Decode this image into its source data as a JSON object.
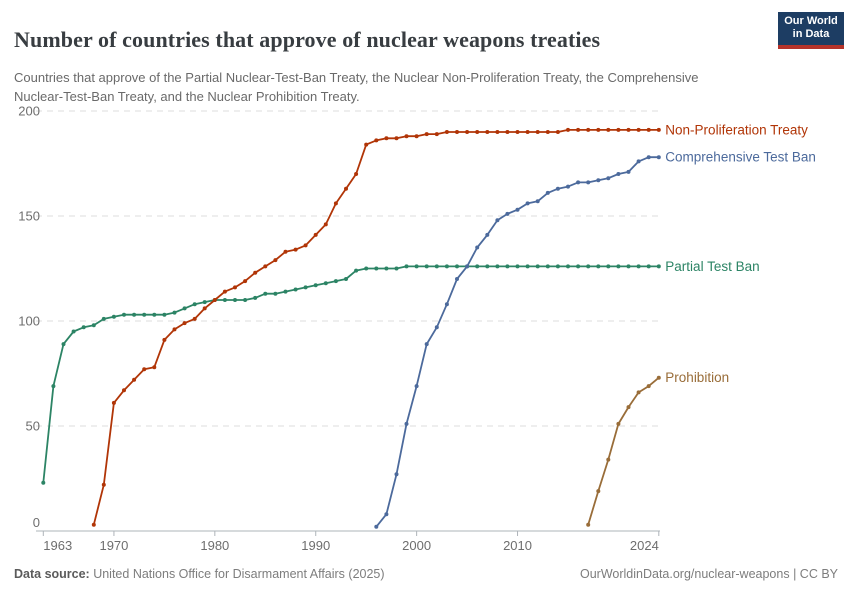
{
  "header": {
    "title": "Number of countries that approve of nuclear weapons treaties",
    "subtitle": "Countries that approve of the Partial Nuclear-Test-Ban Treaty, the Nuclear Non-Proliferation Treaty, the Comprehensive Nuclear-Test-Ban Treaty, and the Nuclear Prohibition Treaty.",
    "logo": {
      "line1": "Our World",
      "line2": "in Data",
      "bg_color": "#1d3d63",
      "accent_color": "#b5332a"
    }
  },
  "chart_data": {
    "type": "line",
    "title": "Number of countries that approve of nuclear weapons treaties",
    "xlabel": "",
    "ylabel": "",
    "x_domain": [
      1963,
      2024
    ],
    "y_domain": [
      0,
      200
    ],
    "x_ticks": [
      1963,
      1970,
      1980,
      1990,
      2000,
      2010,
      2024
    ],
    "y_ticks": [
      0,
      50,
      100,
      150,
      200
    ],
    "grid": "horizontal-dashed",
    "legend_position": "labels-at-line-ends",
    "axis_color": "#aeb4b9",
    "gridline_color": "#dcdcdc",
    "tick_label_color": "#6e6e6e",
    "series": [
      {
        "name": "Partial Test Ban",
        "color": "#2C8465",
        "start_year": 1963,
        "values": [
          23,
          69,
          89,
          95,
          97,
          98,
          101,
          102,
          103,
          103,
          103,
          103,
          103,
          104,
          106,
          108,
          109,
          110,
          110,
          110,
          110,
          111,
          113,
          113,
          114,
          115,
          116,
          117,
          118,
          119,
          120,
          124,
          125,
          125,
          125,
          125,
          126,
          126,
          126,
          126,
          126,
          126,
          126,
          126,
          126,
          126,
          126,
          126,
          126,
          126,
          126,
          126,
          126,
          126,
          126,
          126,
          126,
          126,
          126,
          126,
          126,
          126
        ]
      },
      {
        "name": "Non-Proliferation Treaty",
        "color": "#B13507",
        "start_year": 1968,
        "values": [
          3,
          22,
          61,
          67,
          72,
          77,
          78,
          91,
          96,
          99,
          101,
          106,
          110,
          114,
          116,
          119,
          123,
          126,
          129,
          133,
          134,
          136,
          141,
          146,
          156,
          163,
          170,
          184,
          186,
          187,
          187,
          188,
          188,
          189,
          189,
          190,
          190,
          190,
          190,
          190,
          190,
          190,
          190,
          190,
          190,
          190,
          190,
          191,
          191,
          191,
          191,
          191,
          191,
          191,
          191,
          191,
          191
        ]
      },
      {
        "name": "Comprehensive Test Ban",
        "color": "#4C6A9C",
        "start_year": 1996,
        "values": [
          2,
          8,
          27,
          51,
          69,
          89,
          97,
          108,
          120,
          126,
          135,
          141,
          148,
          151,
          153,
          156,
          157,
          161,
          163,
          164,
          166,
          166,
          167,
          168,
          170,
          171,
          176,
          178,
          178
        ]
      },
      {
        "name": "Prohibition",
        "color": "#996D39",
        "start_year": 2017,
        "values": [
          3,
          19,
          34,
          51,
          59,
          66,
          69,
          73
        ]
      }
    ]
  },
  "footer": {
    "datasource_label": "Data source:",
    "datasource_value": " United Nations Office for Disarmament Affairs (2025)",
    "link": "OurWorldinData.org/nuclear-weapons",
    "separator": " | ",
    "license": "CC BY"
  }
}
